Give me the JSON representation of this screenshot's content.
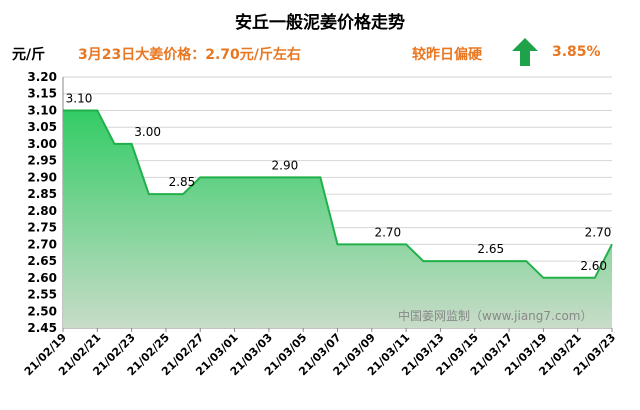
{
  "header": {
    "title": "安丘一般泥姜价格走势",
    "unit": "元/斤",
    "price_text": "3月23日大姜价格：2.70元/斤左右",
    "trend_text": "较昨日偏硬",
    "change_text": "3.85%",
    "arrow_icon": "up-arrow-icon",
    "arrow_color": "#1ea34a"
  },
  "watermark": "中国姜网监制（www.jiang7.com）",
  "colors": {
    "line": "#22b04b",
    "fill_top": "#33cc66",
    "fill_bottom": "#c8dcc8",
    "accent": "#e87722"
  },
  "chart_data": {
    "type": "area",
    "ylim": [
      2.45,
      3.2
    ],
    "ystep": 0.05,
    "x_tick_labels": [
      "21/02/19",
      "21/02/21",
      "21/02/23",
      "21/02/25",
      "21/02/27",
      "21/03/01",
      "21/03/03",
      "21/03/05",
      "21/03/07",
      "21/03/09",
      "21/03/11",
      "21/03/13",
      "21/03/15",
      "21/03/17",
      "21/03/19",
      "21/03/21",
      "21/03/23"
    ],
    "points": [
      {
        "x": "21/02/19",
        "y": 3.1
      },
      {
        "x": "21/02/20",
        "y": 3.1
      },
      {
        "x": "21/02/21",
        "y": 3.1
      },
      {
        "x": "21/02/22",
        "y": 3.0
      },
      {
        "x": "21/02/23",
        "y": 3.0
      },
      {
        "x": "21/02/24",
        "y": 2.85
      },
      {
        "x": "21/02/25",
        "y": 2.85
      },
      {
        "x": "21/02/26",
        "y": 2.85
      },
      {
        "x": "21/02/27",
        "y": 2.9
      },
      {
        "x": "21/02/28",
        "y": 2.9
      },
      {
        "x": "21/03/01",
        "y": 2.9
      },
      {
        "x": "21/03/02",
        "y": 2.9
      },
      {
        "x": "21/03/03",
        "y": 2.9
      },
      {
        "x": "21/03/04",
        "y": 2.9
      },
      {
        "x": "21/03/05",
        "y": 2.9
      },
      {
        "x": "21/03/06",
        "y": 2.9
      },
      {
        "x": "21/03/07",
        "y": 2.7
      },
      {
        "x": "21/03/08",
        "y": 2.7
      },
      {
        "x": "21/03/09",
        "y": 2.7
      },
      {
        "x": "21/03/10",
        "y": 2.7
      },
      {
        "x": "21/03/11",
        "y": 2.7
      },
      {
        "x": "21/03/12",
        "y": 2.65
      },
      {
        "x": "21/03/13",
        "y": 2.65
      },
      {
        "x": "21/03/14",
        "y": 2.65
      },
      {
        "x": "21/03/15",
        "y": 2.65
      },
      {
        "x": "21/03/16",
        "y": 2.65
      },
      {
        "x": "21/03/17",
        "y": 2.65
      },
      {
        "x": "21/03/18",
        "y": 2.65
      },
      {
        "x": "21/03/19",
        "y": 2.6
      },
      {
        "x": "21/03/20",
        "y": 2.6
      },
      {
        "x": "21/03/21",
        "y": 2.6
      },
      {
        "x": "21/03/22",
        "y": 2.6
      },
      {
        "x": "21/03/23",
        "y": 2.7
      }
    ],
    "data_labels": [
      {
        "x": "21/02/19",
        "text": "3.10"
      },
      {
        "x": "21/02/23",
        "text": "3.00"
      },
      {
        "x": "21/02/25",
        "text": "2.85"
      },
      {
        "x": "21/03/03",
        "text": "2.90"
      },
      {
        "x": "21/03/09",
        "text": "2.70"
      },
      {
        "x": "21/03/15",
        "text": "2.65"
      },
      {
        "x": "21/03/21",
        "text": "2.60"
      },
      {
        "x": "21/03/23",
        "text": "2.70"
      }
    ]
  }
}
